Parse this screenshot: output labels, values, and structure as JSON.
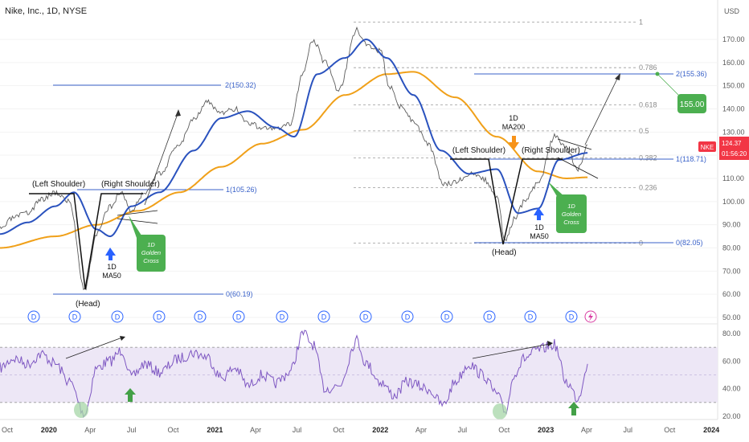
{
  "header": {
    "title": "Nike, Inc., 1D, NYSE"
  },
  "price_axis": {
    "currency": "USD",
    "ticks": [
      "170.00",
      "160.00",
      "150.00",
      "140.00",
      "130.00",
      "120.00",
      "110.00",
      "100.00",
      "90.00",
      "80.00",
      "70.00",
      "60.00",
      "50.00"
    ],
    "current_price": "124.37",
    "countdown": "01:56:20",
    "symbol": "NKE"
  },
  "rsi_axis": {
    "ticks": [
      "80.00",
      "60.00",
      "40.00",
      "20.00"
    ]
  },
  "time_axis": {
    "ticks": [
      "Oct",
      "2020",
      "Apr",
      "Jul",
      "Oct",
      "2021",
      "Apr",
      "Jul",
      "Oct",
      "2022",
      "Apr",
      "Jul",
      "Oct",
      "2023",
      "Apr",
      "Jul",
      "Oct",
      "2024"
    ]
  },
  "fib_levels": [
    {
      "label": "1",
      "value": 177.5
    },
    {
      "label": "0.786",
      "value": 157.8
    },
    {
      "label": "0.618",
      "value": 141.7
    },
    {
      "label": "0.5",
      "value": 130.5
    },
    {
      "label": "0.382",
      "value": 118.8
    },
    {
      "label": "0.236",
      "value": 106.0
    },
    {
      "label": "0",
      "value": 82.05
    }
  ],
  "annotations": {
    "left_shoulder_1": "(Left Shoulder)",
    "right_shoulder_1": "(Right Shoulder)",
    "head_1": "(Head)",
    "left_shoulder_2": "(Left Shoulder)",
    "right_shoulder_2": "(Right Shoulder)",
    "head_2": "(Head)",
    "ma50_1": "1D\nMA50",
    "ma50_2": "1D\nMA50",
    "ma200": "1D\nMA200",
    "golden_cross_1": "1D\nGolden\nCross",
    "golden_cross_2": "1D\nGolden\nCross",
    "target_box": "155.00",
    "level_150": "2(150.32)",
    "level_105": "1(105.26)",
    "level_60": "0(60.19)",
    "level_155": "2(155.36)",
    "level_118": "1(118.71)",
    "level_82": "0(82.05)"
  },
  "dividend_marker": "D",
  "colors": {
    "ma50": "#2a52be",
    "ma200": "#f0a019",
    "price": "#5c5c5c",
    "up": "#2ca58d",
    "down": "#e44a4a",
    "rsi": "#7e57c2",
    "rsi_band": "#ede7f6",
    "green_box": "#4caf50",
    "orange_arrow": "#f7931a",
    "blue_arrow": "#2962ff",
    "current_price": "#f23645",
    "fib_line": "#9a9a9a",
    "level_line": "#3a62c9"
  },
  "chart_data": {
    "type": "line",
    "title": "Nike, Inc., 1D, NYSE",
    "ylabel": "USD",
    "ylim": [
      45,
      182
    ],
    "x_range": [
      "2019-09-15",
      "2024-01-15"
    ],
    "series": [
      {
        "name": "Price",
        "x": [
          "2019-09-15",
          "2019-10-15",
          "2019-11-15",
          "2019-12-15",
          "2020-01-15",
          "2020-02-15",
          "2020-03-20",
          "2020-04-15",
          "2020-05-15",
          "2020-06-08",
          "2020-07-01",
          "2020-07-30",
          "2020-09-01",
          "2020-10-15",
          "2020-11-15",
          "2020-12-15",
          "2021-01-15",
          "2021-02-15",
          "2021-03-15",
          "2021-04-15",
          "2021-05-15",
          "2021-06-15",
          "2021-07-15",
          "2021-08-05",
          "2021-09-01",
          "2021-10-01",
          "2021-11-10",
          "2021-12-01",
          "2022-01-01",
          "2022-01-20",
          "2022-02-15",
          "2022-03-15",
          "2022-04-15",
          "2022-05-20",
          "2022-06-15",
          "2022-07-15",
          "2022-08-15",
          "2022-09-15",
          "2022-10-03",
          "2022-10-25",
          "2022-11-15",
          "2022-12-15",
          "2023-01-20",
          "2023-02-15",
          "2023-03-13",
          "2023-04-03"
        ],
        "values": [
          88,
          93,
          95,
          101,
          104,
          100,
          62,
          86,
          98,
          104,
          96,
          104,
          112,
          125,
          136,
          143,
          138,
          140,
          134,
          132,
          131,
          133,
          156,
          170,
          160,
          148,
          174,
          168,
          165,
          150,
          141,
          135,
          125,
          108,
          108,
          112,
          110,
          102,
          83,
          93,
          100,
          108,
          128,
          123,
          114,
          124.37
        ]
      },
      {
        "name": "1D MA50",
        "x": [
          "2019-09-15",
          "2019-11-15",
          "2020-01-15",
          "2020-02-25",
          "2020-04-15",
          "2020-05-15",
          "2020-07-01",
          "2020-09-01",
          "2020-11-15",
          "2021-01-15",
          "2021-03-15",
          "2021-05-15",
          "2021-06-25",
          "2021-08-15",
          "2021-10-15",
          "2021-12-01",
          "2022-01-15",
          "2022-03-15",
          "2022-05-15",
          "2022-07-15",
          "2022-09-15",
          "2022-11-01",
          "2022-12-15",
          "2023-01-30",
          "2023-04-03"
        ],
        "values": [
          86,
          91,
          98,
          104,
          88,
          85,
          98,
          104,
          122,
          136,
          139,
          132,
          128,
          155,
          162,
          170,
          162,
          146,
          122,
          112,
          114,
          95,
          97,
          118,
          121
        ]
      },
      {
        "name": "1D MA200",
        "x": [
          "2019-09-15",
          "2020-01-15",
          "2020-04-15",
          "2020-07-15",
          "2020-10-15",
          "2021-01-15",
          "2021-04-15",
          "2021-07-15",
          "2021-10-15",
          "2022-01-15",
          "2022-03-15",
          "2022-06-15",
          "2022-09-15",
          "2022-12-15",
          "2023-02-15",
          "2023-04-03"
        ],
        "values": [
          80,
          85,
          90,
          96,
          104,
          115,
          125,
          131,
          146,
          155,
          156,
          145,
          128,
          113,
          110,
          110.5
        ]
      },
      {
        "name": "RSI",
        "x": [
          "2019-09-15",
          "2019-10-15",
          "2019-11-15",
          "2019-12-15",
          "2020-01-15",
          "2020-02-15",
          "2020-03-20",
          "2020-04-15",
          "2020-05-15",
          "2020-06-10",
          "2020-07-01",
          "2020-07-30",
          "2020-09-01",
          "2020-10-15",
          "2020-11-15",
          "2020-12-15",
          "2021-01-15",
          "2021-02-15",
          "2021-03-15",
          "2021-04-15",
          "2021-05-15",
          "2021-06-15",
          "2021-07-15",
          "2021-08-05",
          "2021-09-01",
          "2021-10-01",
          "2021-11-10",
          "2021-12-01",
          "2022-01-01",
          "2022-02-01",
          "2022-03-01",
          "2022-04-15",
          "2022-05-20",
          "2022-06-15",
          "2022-07-15",
          "2022-08-15",
          "2022-09-15",
          "2022-10-03",
          "2022-10-25",
          "2022-11-15",
          "2022-12-15",
          "2023-01-20",
          "2023-02-15",
          "2023-03-13",
          "2023-04-03"
        ],
        "values": [
          55,
          62,
          58,
          65,
          58,
          45,
          22,
          55,
          60,
          68,
          48,
          58,
          52,
          62,
          66,
          63,
          48,
          55,
          42,
          50,
          44,
          52,
          80,
          72,
          40,
          42,
          75,
          58,
          45,
          35,
          45,
          40,
          28,
          45,
          58,
          50,
          36,
          23,
          52,
          62,
          68,
          72,
          45,
          33,
          58
        ]
      }
    ],
    "rsi_ylim": [
      15,
      85
    ],
    "rsi_band": [
      30,
      70
    ],
    "annotations": [
      "(Left Shoulder)",
      "(Right Shoulder)",
      "(Head)",
      "1D MA50",
      "1D MA200",
      "1D Golden Cross"
    ]
  }
}
